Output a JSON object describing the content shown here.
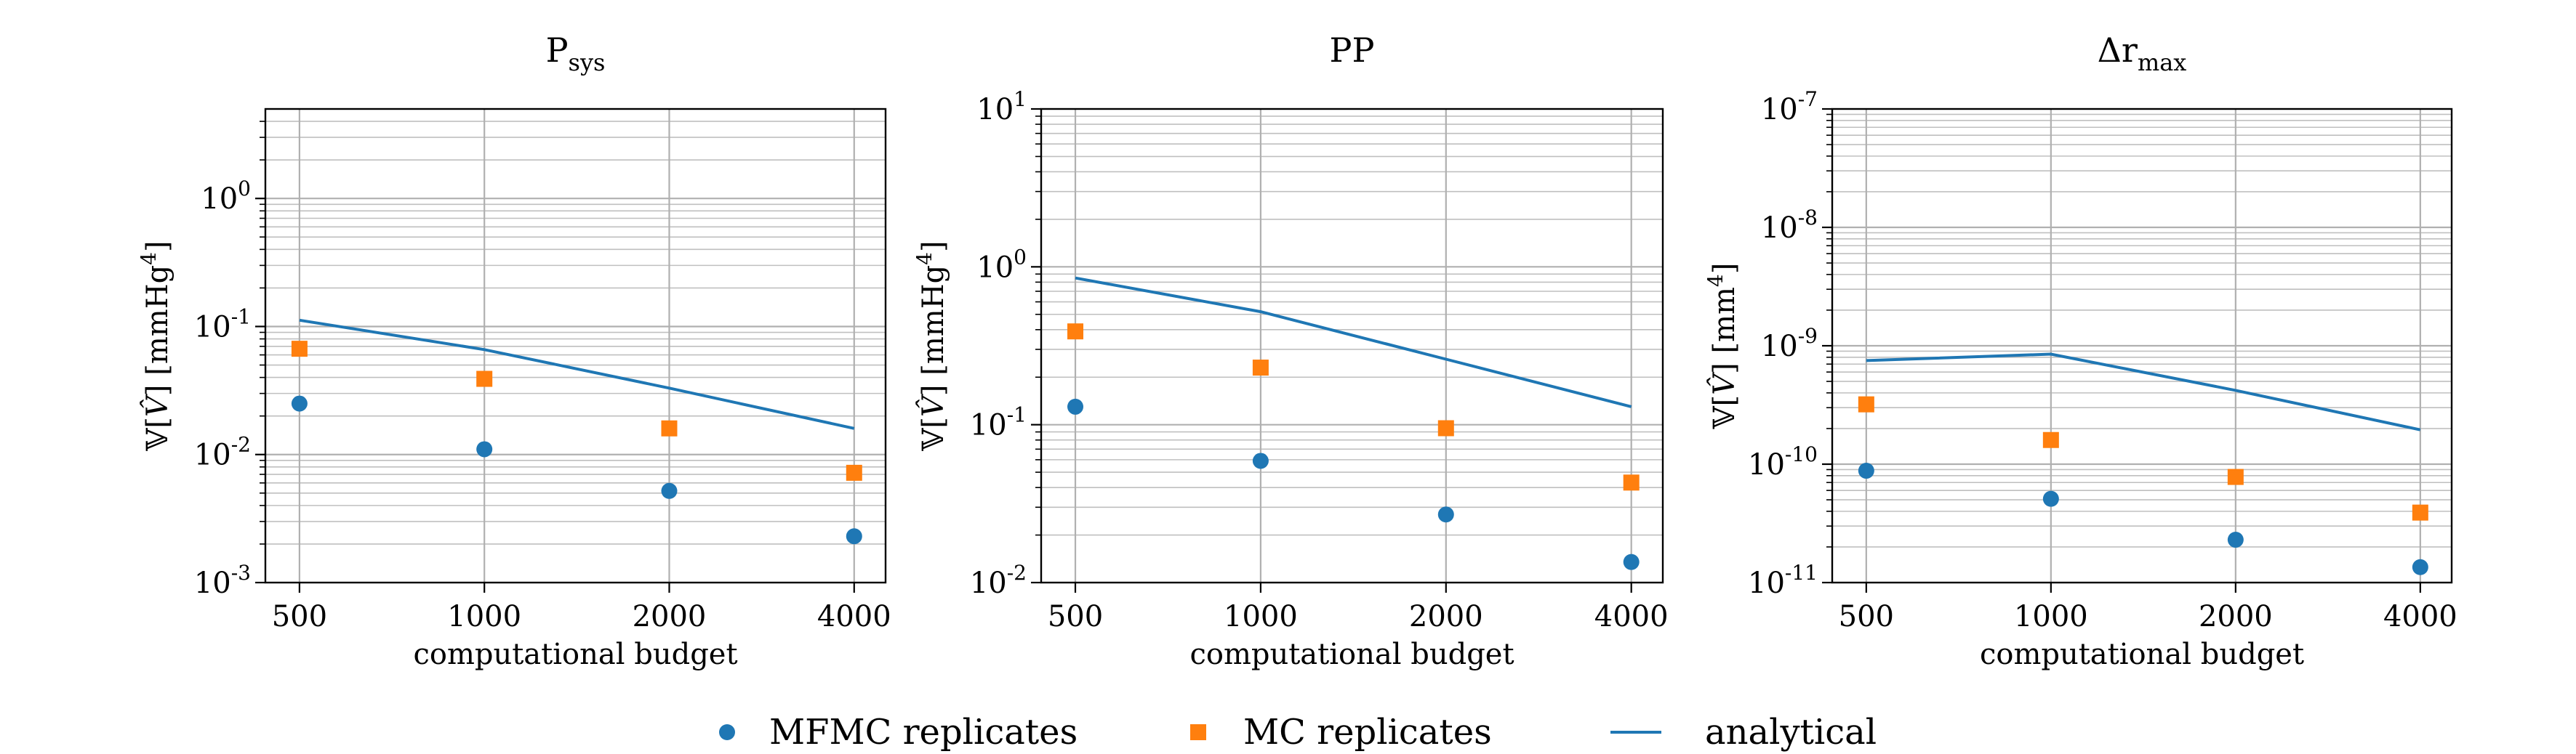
{
  "figure": {
    "legend_position": "bottom-center",
    "colors": {
      "mfmc": "#1f77b4",
      "mc": "#ff7f0e",
      "analytical": "#1f77b4",
      "grid": "#b0b0b0"
    }
  },
  "legend": {
    "items": [
      {
        "label": "MFMC replicates",
        "marker": "circle",
        "color": "#1f77b4"
      },
      {
        "label": "MC replicates",
        "marker": "square",
        "color": "#ff7f0e"
      },
      {
        "label": "analytical",
        "marker": "line",
        "color": "#1f77b4"
      }
    ]
  },
  "chart_data": [
    {
      "type": "scatter",
      "title": "P",
      "title_subscript": "sys",
      "xlabel": "computational budget",
      "ylabel_prefix": "𝕍[",
      "ylabel_var": "V̂",
      "ylabel_suffix": "] [mmHg",
      "ylabel_sup": "4",
      "ylabel_end": "]",
      "x_scale": "log",
      "y_scale": "log",
      "xlim": [
        440,
        4500
      ],
      "ylim": [
        0.001,
        5
      ],
      "x_ticks": [
        500,
        1000,
        2000,
        4000
      ],
      "x_tick_labels": [
        "500",
        "1000",
        "2000",
        "4000"
      ],
      "y_tick_exponents": [
        -3,
        -2,
        -1,
        0
      ],
      "grid": true,
      "series": [
        {
          "name": "MFMC replicates",
          "marker": "circle",
          "x": [
            500,
            1000,
            2000,
            4000
          ],
          "values": [
            0.025,
            0.011,
            0.0052,
            0.0023
          ]
        },
        {
          "name": "MC replicates",
          "marker": "square",
          "x": [
            500,
            1000,
            2000,
            4000
          ],
          "values": [
            0.067,
            0.039,
            0.016,
            0.0072
          ]
        },
        {
          "name": "analytical",
          "marker": "line",
          "x": [
            500,
            1000,
            2000,
            4000
          ],
          "values": [
            0.112,
            0.066,
            0.033,
            0.016
          ]
        }
      ]
    },
    {
      "type": "scatter",
      "title": "PP",
      "title_subscript": "",
      "xlabel": "computational budget",
      "ylabel_prefix": "𝕍[",
      "ylabel_var": "V̂",
      "ylabel_suffix": "] [mmHg",
      "ylabel_sup": "4",
      "ylabel_end": "]",
      "x_scale": "log",
      "y_scale": "log",
      "xlim": [
        440,
        4500
      ],
      "ylim": [
        0.01,
        10
      ],
      "x_ticks": [
        500,
        1000,
        2000,
        4000
      ],
      "x_tick_labels": [
        "500",
        "1000",
        "2000",
        "4000"
      ],
      "y_tick_exponents": [
        -2,
        -1,
        0,
        1
      ],
      "grid": true,
      "series": [
        {
          "name": "MFMC replicates",
          "marker": "circle",
          "x": [
            500,
            1000,
            2000,
            4000
          ],
          "values": [
            0.13,
            0.059,
            0.027,
            0.0135
          ]
        },
        {
          "name": "MC replicates",
          "marker": "square",
          "x": [
            500,
            1000,
            2000,
            4000
          ],
          "values": [
            0.39,
            0.23,
            0.095,
            0.043
          ]
        },
        {
          "name": "analytical",
          "marker": "line",
          "x": [
            500,
            1000,
            2000,
            4000
          ],
          "values": [
            0.85,
            0.52,
            0.26,
            0.13
          ]
        }
      ]
    },
    {
      "type": "scatter",
      "title": "Δr",
      "title_subscript": "max",
      "xlabel": "computational budget",
      "ylabel_prefix": "𝕍[",
      "ylabel_var": "V̂",
      "ylabel_suffix": "] [mm",
      "ylabel_sup": "4",
      "ylabel_end": "]",
      "x_scale": "log",
      "y_scale": "log",
      "xlim": [
        440,
        4500
      ],
      "ylim": [
        1e-11,
        1e-07
      ],
      "x_ticks": [
        500,
        1000,
        2000,
        4000
      ],
      "x_tick_labels": [
        "500",
        "1000",
        "2000",
        "4000"
      ],
      "y_tick_exponents": [
        -11,
        -10,
        -9,
        -8,
        -7
      ],
      "grid": true,
      "series": [
        {
          "name": "MFMC replicates",
          "marker": "circle",
          "x": [
            500,
            1000,
            2000,
            4000
          ],
          "values": [
            8.8e-11,
            5.1e-11,
            2.3e-11,
            1.35e-11
          ]
        },
        {
          "name": "MC replicates",
          "marker": "square",
          "x": [
            500,
            1000,
            2000,
            4000
          ],
          "values": [
            3.2e-10,
            1.6e-10,
            7.8e-11,
            3.9e-11
          ]
        },
        {
          "name": "analytical",
          "marker": "line",
          "x": [
            500,
            1000,
            2000,
            4000
          ],
          "values": [
            7.5e-10,
            8.5e-10,
            4.2e-10,
            1.95e-10
          ]
        }
      ]
    }
  ]
}
